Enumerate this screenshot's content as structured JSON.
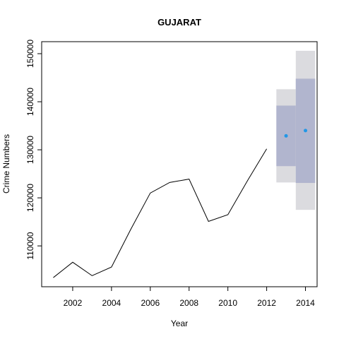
{
  "chart_data": {
    "type": "line",
    "title": "GUJARAT",
    "xlabel": "Year",
    "ylabel": "Crime Numbers",
    "xlim": [
      2000.4,
      2014.6
    ],
    "ylim": [
      101500,
      152500
    ],
    "x_ticks": [
      2002,
      2004,
      2006,
      2008,
      2010,
      2012,
      2014
    ],
    "x_tick_labels": [
      "2002",
      "2004",
      "2006",
      "2008",
      "2010",
      "2012",
      "2014"
    ],
    "y_ticks": [
      110000,
      120000,
      130000,
      140000,
      150000
    ],
    "y_tick_labels": [
      "110000",
      "120000",
      "130000",
      "140000",
      "150000"
    ],
    "grid": false,
    "series": [
      {
        "x": [
          2001,
          2002,
          2003,
          2004,
          2005,
          2006,
          2007,
          2008,
          2009,
          2010,
          2011,
          2012
        ],
        "values": [
          103400,
          106600,
          103800,
          105600,
          113500,
          121000,
          123200,
          123900,
          115100,
          116500,
          123500,
          130200
        ],
        "color": "#000000"
      }
    ],
    "forecast": {
      "x": [
        2013,
        2014
      ],
      "point": [
        132900,
        134000
      ],
      "lo80": [
        126600,
        123100
      ],
      "hi80": [
        139200,
        144800
      ],
      "lo95": [
        123200,
        117500
      ],
      "hi95": [
        142600,
        150600
      ],
      "point_color": "#2297e6",
      "band80_color": "#b1b5ce",
      "band95_color": "#dbdbdf"
    }
  }
}
